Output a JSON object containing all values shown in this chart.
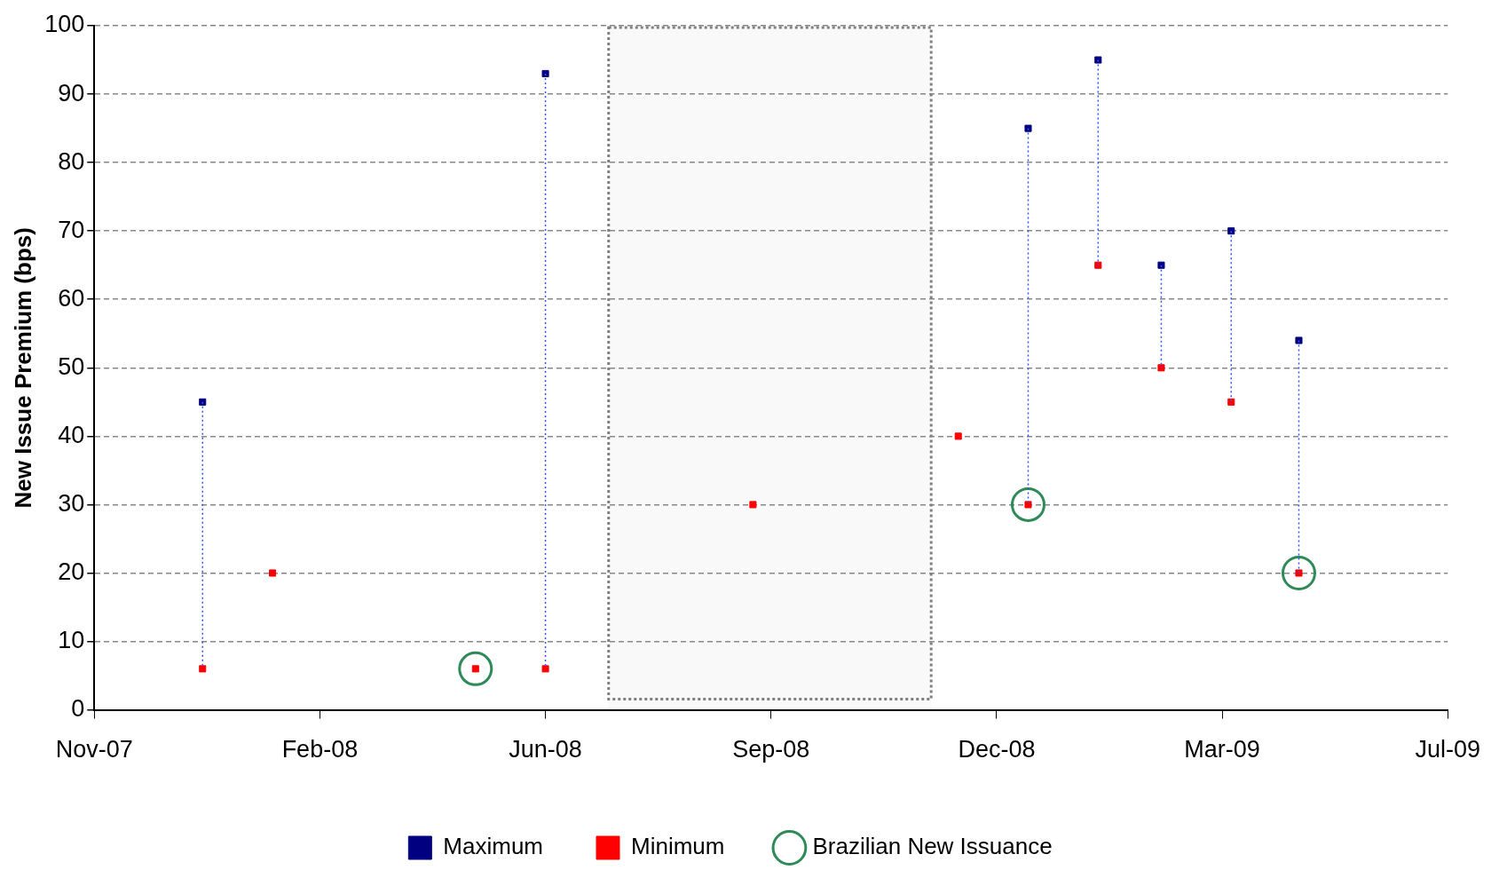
{
  "chart_data": {
    "type": "scatter",
    "ylabel": "New Issue Premium (bps)",
    "xlim": [
      "2007-11-14",
      "2009-07-06"
    ],
    "xticks": [
      {
        "value": "2007-11-14",
        "label": "Nov-07"
      },
      {
        "value": "2008-02-22",
        "label": "Feb-08"
      },
      {
        "value": "2008-06-01",
        "label": "Jun-08"
      },
      {
        "value": "2008-09-09",
        "label": "Sep-08"
      },
      {
        "value": "2008-12-18",
        "label": "Dec-08"
      },
      {
        "value": "2009-03-28",
        "label": "Mar-09"
      },
      {
        "value": "2009-07-06",
        "label": "Jul-09"
      }
    ],
    "ylim": [
      0,
      100
    ],
    "yticks": [
      0,
      10,
      20,
      30,
      40,
      50,
      60,
      70,
      80,
      90,
      100
    ],
    "grid": "y",
    "legend": "bottom",
    "bands": [
      {
        "axis": "x",
        "from": "2008-06-29",
        "to": "2008-11-19",
        "color": "#808080"
      }
    ],
    "series": [
      {
        "name": "Maximum",
        "color": "#000080",
        "marker": "square",
        "x": [
          "2008-01-01",
          "2008-06-01",
          "2009-01-01",
          "2009-02-01",
          "2009-03-01",
          "2009-04-01",
          "2009-05-01"
        ],
        "values": [
          45,
          93,
          85,
          95,
          65,
          70,
          54
        ]
      },
      {
        "name": "Minimum",
        "color": "#ff0000",
        "marker": "square",
        "x": [
          "2008-01-01",
          "2008-02-01",
          "2008-05-01",
          "2008-06-01",
          "2008-09-01",
          "2008-12-01",
          "2009-01-01",
          "2009-02-01",
          "2009-03-01",
          "2009-04-01",
          "2009-05-01"
        ],
        "values": [
          6,
          20,
          6,
          6,
          30,
          40,
          30,
          65,
          50,
          45,
          20
        ],
        "errors": [
          [
            6,
            45
          ],
          null,
          null,
          [
            6,
            93
          ],
          null,
          null,
          [
            30,
            85
          ],
          [
            65,
            95
          ],
          [
            50,
            65
          ],
          [
            45,
            70
          ],
          [
            20,
            54
          ]
        ]
      },
      {
        "name": "Brazilian New Issuance",
        "color": "#2e8b57",
        "marker": "circle",
        "x": [
          "2008-05-01",
          "2009-01-01",
          "2009-05-01"
        ],
        "values": [
          6,
          30,
          20
        ]
      }
    ]
  }
}
